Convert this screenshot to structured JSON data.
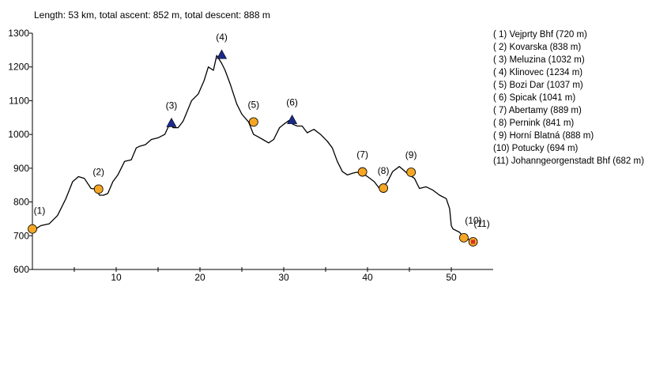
{
  "summary": "Length: 53 km, total ascent: 852 m, total descent: 888 m",
  "chart_data": {
    "type": "line",
    "title": "",
    "xlabel": "",
    "ylabel": "",
    "xlim": [
      0,
      55
    ],
    "ylim": [
      600,
      1300
    ],
    "x_ticks": [
      10,
      20,
      30,
      40,
      50
    ],
    "y_ticks": [
      600,
      700,
      800,
      900,
      1000,
      1100,
      1200,
      1300
    ],
    "grid": false,
    "legend_position": "right",
    "series": [
      {
        "x": [
          0.0,
          0.5,
          1.0,
          2.0,
          3.0,
          4.0,
          4.8,
          5.5,
          6.2,
          7.0,
          7.6,
          8.0,
          8.5,
          9.0,
          9.6,
          10.2,
          11.0,
          11.8,
          12.4,
          12.8,
          13.5,
          14.2,
          15.0,
          15.8,
          16.4,
          16.8,
          17.4,
          18.0,
          18.5,
          19.0,
          19.8,
          20.5,
          21.0,
          21.6,
          22.0,
          22.6,
          23.0,
          23.6,
          24.4,
          25.0,
          25.8,
          26.4,
          26.8,
          27.5,
          28.2,
          28.8,
          29.5,
          30.0,
          30.6,
          31.1,
          31.6,
          32.2,
          32.8,
          33.6,
          34.4,
          35.2,
          35.8,
          36.4,
          37.0,
          37.6,
          38.2,
          38.7,
          39.4,
          40.0,
          40.8,
          41.4,
          41.9,
          42.4,
          43.0,
          43.8,
          44.5,
          45.0,
          45.6,
          46.2,
          47.0,
          47.8,
          48.6,
          49.4,
          49.8,
          50.0,
          50.2,
          51.0,
          51.5,
          52.0,
          52.5
        ],
        "y": [
          720,
          722,
          730,
          735,
          760,
          810,
          860,
          875,
          870,
          840,
          838,
          820,
          820,
          825,
          860,
          880,
          920,
          925,
          960,
          965,
          970,
          985,
          990,
          1000,
          1032,
          1020,
          1020,
          1040,
          1070,
          1100,
          1120,
          1160,
          1200,
          1190,
          1234,
          1210,
          1190,
          1150,
          1090,
          1060,
          1037,
          1000,
          995,
          985,
          975,
          985,
          1020,
          1030,
          1041,
          1030,
          1025,
          1025,
          1005,
          1015,
          1000,
          980,
          960,
          920,
          890,
          880,
          885,
          888,
          885,
          875,
          860,
          841,
          845,
          860,
          890,
          905,
          890,
          880,
          870,
          840,
          845,
          835,
          820,
          810,
          780,
          730,
          720,
          710,
          694,
          690,
          682
        ]
      }
    ],
    "waypoints": [
      {
        "label": "(1)",
        "x": 0.0,
        "y": 720,
        "marker": "circle"
      },
      {
        "label": "(2)",
        "x": 7.9,
        "y": 838,
        "marker": "circle"
      },
      {
        "label": "(3)",
        "x": 16.6,
        "y": 1032,
        "marker": "triangle"
      },
      {
        "label": "(4)",
        "x": 22.6,
        "y": 1234,
        "marker": "triangle"
      },
      {
        "label": "(5)",
        "x": 26.4,
        "y": 1037,
        "marker": "circle"
      },
      {
        "label": "(6)",
        "x": 31.0,
        "y": 1041,
        "marker": "triangle"
      },
      {
        "label": "(7)",
        "x": 39.4,
        "y": 889,
        "marker": "circle"
      },
      {
        "label": "(8)",
        "x": 41.9,
        "y": 841,
        "marker": "circle"
      },
      {
        "label": "(9)",
        "x": 45.2,
        "y": 888,
        "marker": "circle"
      },
      {
        "label": "(10)",
        "x": 51.5,
        "y": 694,
        "marker": "circle"
      },
      {
        "label": "(11)",
        "x": 52.6,
        "y": 682,
        "marker": "end"
      }
    ],
    "legend": [
      "( 1) Vejprty Bhf (720 m)",
      "( 2) Kovarska (838 m)",
      "( 3) Meluzina (1032 m)",
      "( 4) Klinovec (1234 m)",
      "( 5) Bozi Dar (1037 m)",
      "( 6) Spicak (1041 m)",
      "( 7) Abertamy (889 m)",
      "( 8) Pernink (841 m)",
      "( 9) Horní Blatná (888 m)",
      "(10) Potucky (694 m)",
      "(11) Johanngeorgenstadt Bhf (682 m)"
    ],
    "colors": {
      "line": "#000000",
      "circle_fill": "#f5a623",
      "triangle_fill": "#1a2a8c",
      "end_marker": "#d0312d"
    }
  }
}
